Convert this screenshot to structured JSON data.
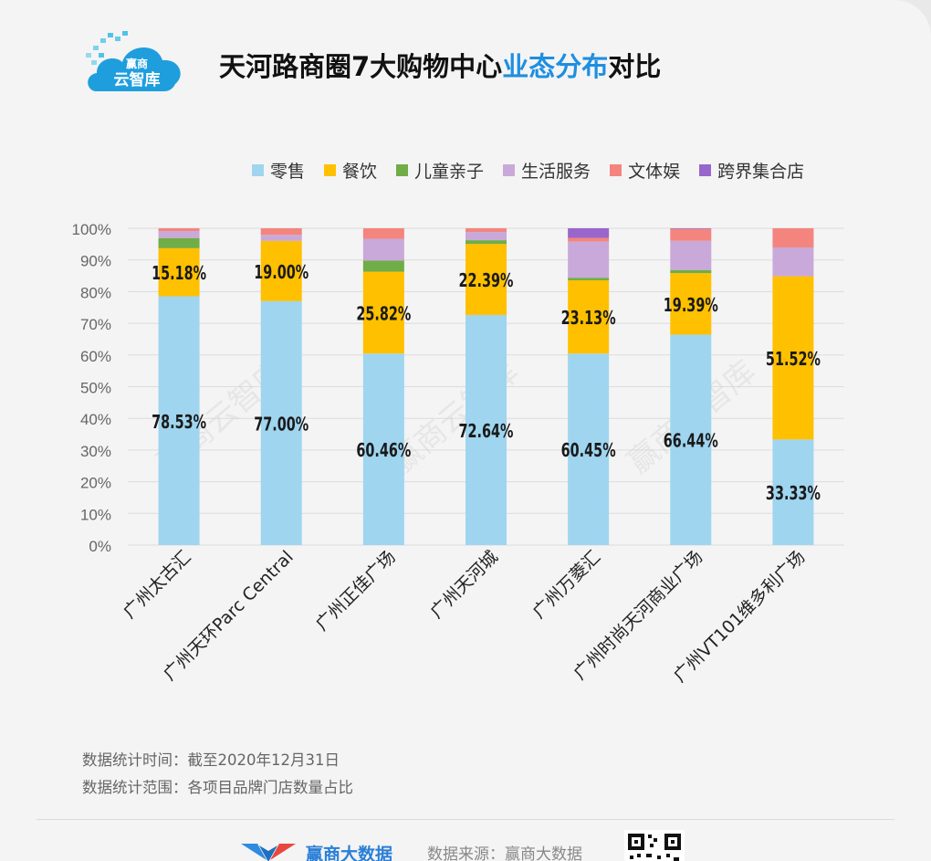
{
  "title": {
    "pre": "天河路商圈7大购物中心",
    "highlight": "业态分布",
    "post": "对比"
  },
  "logo": {
    "line1": "赢商",
    "line2": "云智库"
  },
  "chart_data": {
    "type": "bar",
    "stacked": true,
    "categories": [
      "广州太古汇",
      "广州天环Parc Central",
      "广州正佳广场",
      "广州天河城",
      "广州万菱汇",
      "广州时尚天河商业广场",
      "广州VT101维多利广场"
    ],
    "yticks": [
      "0%",
      "10%",
      "20%",
      "30%",
      "40%",
      "50%",
      "60%",
      "70%",
      "80%",
      "90%",
      "100%"
    ],
    "ylim": [
      0,
      100
    ],
    "legend_position": "top",
    "grid": true,
    "series": [
      {
        "name": "零售",
        "color": "#9fd5ef",
        "values": [
          78.53,
          77.0,
          60.46,
          72.64,
          60.45,
          66.44,
          33.33
        ],
        "labels": [
          "78.53%",
          "77.00%",
          "60.46%",
          "72.64%",
          "60.45%",
          "66.44%",
          "33.33%"
        ]
      },
      {
        "name": "餐饮",
        "color": "#ffc000",
        "values": [
          15.18,
          19.0,
          25.82,
          22.39,
          23.13,
          19.39,
          51.52
        ],
        "labels": [
          "15.18%",
          "19.00%",
          "25.82%",
          "22.39%",
          "23.13%",
          "19.39%",
          "51.52%"
        ]
      },
      {
        "name": "儿童亲子",
        "color": "#70ad47",
        "values": [
          3.2,
          0,
          3.5,
          1.2,
          0.8,
          1.0,
          0
        ]
      },
      {
        "name": "生活服务",
        "color": "#c9a9d9",
        "values": [
          2.2,
          1.9,
          6.9,
          2.6,
          11.4,
          9.2,
          9.1
        ]
      },
      {
        "name": "文体娱",
        "color": "#f4857e",
        "values": [
          0.89,
          2.1,
          3.32,
          1.17,
          1.2,
          3.77,
          6.05
        ]
      },
      {
        "name": "跨界集合店",
        "color": "#9966cc",
        "values": [
          0,
          0,
          0,
          0,
          3.02,
          0.2,
          0
        ]
      }
    ]
  },
  "watermark": "赢商云智库",
  "notes": [
    "数据统计时间：截至2020年12月31日",
    "数据统计范围：各项目品牌门店数量占比"
  ],
  "footer": {
    "brand": "赢商大数据",
    "source": "数据来源：赢商大数据"
  }
}
